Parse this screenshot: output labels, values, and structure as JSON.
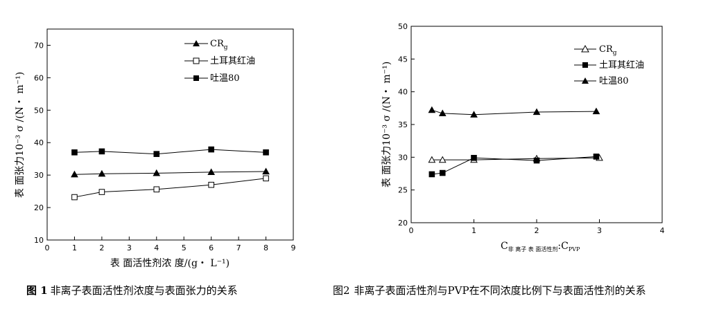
{
  "chart_data": [
    {
      "type": "line",
      "title": "",
      "caption_prefix": "图 1",
      "caption": "非离子表面活性剂浓度与表面张力的关系",
      "xlabel": "表 面活性剂浓 度/(g・ L⁻¹)",
      "ylabel": "表 面张力10⁻³ σ /(N・ m⁻¹)",
      "xlim": [
        0,
        9
      ],
      "ylim": [
        10,
        75
      ],
      "xticks": [
        0,
        1,
        2,
        3,
        4,
        5,
        6,
        7,
        8,
        9
      ],
      "yticks": [
        10,
        20,
        30,
        40,
        50,
        60,
        70
      ],
      "legend_position": "top-right",
      "series": [
        {
          "name": "CR",
          "name_sub": "g",
          "marker": "triangle-filled",
          "x": [
            1,
            2,
            4,
            6,
            8
          ],
          "y": [
            30.2,
            30.4,
            30.6,
            30.9,
            31.1
          ]
        },
        {
          "name": "土耳其红油",
          "marker": "square-open",
          "x": [
            1,
            2,
            4,
            6,
            8
          ],
          "y": [
            23.2,
            24.8,
            25.6,
            27.0,
            29.0
          ]
        },
        {
          "name": "吐温80",
          "marker": "square-filled",
          "x": [
            1,
            2,
            4,
            6,
            8
          ],
          "y": [
            37.0,
            37.3,
            36.5,
            37.9,
            37.0
          ]
        }
      ]
    },
    {
      "type": "line",
      "title": "",
      "caption_prefix": "图2",
      "caption": "非离子表面活性剂与PVP在不同浓度比例下与表面活性剂的关系",
      "xlabel_main": "C",
      "xlabel_sub": "非 离子 表 面活性剂",
      "xlabel_sep": ":C",
      "xlabel_sub2": "PVP",
      "ylabel": "表 面张力10⁻³ σ /(N・ m⁻¹)",
      "xlim": [
        0,
        4
      ],
      "ylim": [
        20,
        50
      ],
      "xticks": [
        0,
        1,
        2,
        3,
        4
      ],
      "yticks": [
        20,
        25,
        30,
        35,
        40,
        45,
        50
      ],
      "legend_position": "top-right",
      "series": [
        {
          "name": "CR",
          "name_sub": "g",
          "marker": "triangle-open",
          "x": [
            0.33,
            0.5,
            1,
            2,
            3
          ],
          "y": [
            29.6,
            29.6,
            29.6,
            29.8,
            29.9
          ]
        },
        {
          "name": "土耳其红油",
          "marker": "square-filled",
          "x": [
            0.33,
            0.5,
            1,
            2,
            2.95
          ],
          "y": [
            27.4,
            27.6,
            29.9,
            29.5,
            30.1
          ]
        },
        {
          "name": "吐温80",
          "marker": "triangle-filled",
          "x": [
            0.33,
            0.5,
            1,
            2,
            2.95
          ],
          "y": [
            37.2,
            36.7,
            36.5,
            36.9,
            37.0
          ]
        }
      ]
    }
  ]
}
